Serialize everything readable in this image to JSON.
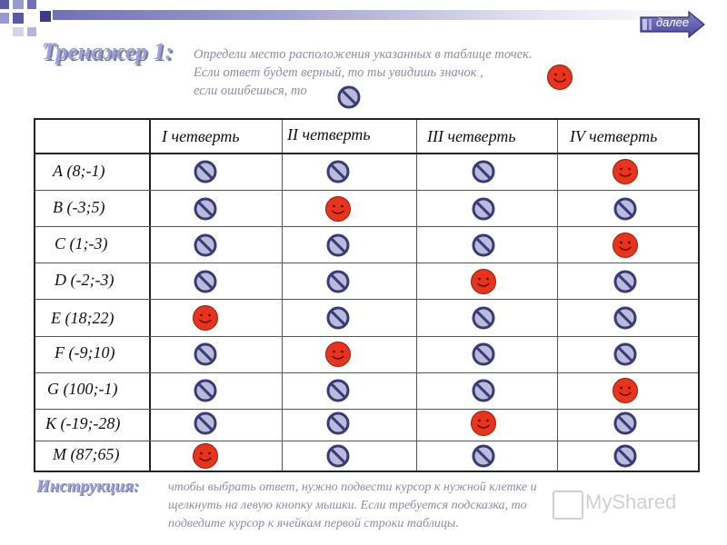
{
  "nav": {
    "next_label": "далее"
  },
  "header": {
    "title": "Тренажер 1:",
    "task_lines": [
      "Определи место расположения указанных в таблице точек.",
      "Если ответ будет верный, то ты увидишь значок ,",
      "если ошибешься, то"
    ]
  },
  "table": {
    "columns": [
      "I четверть",
      "II четверть",
      "III четверть",
      "IV четверть"
    ],
    "rows": [
      {
        "label": "А (8;-1)",
        "cells": [
          "no",
          "no",
          "no",
          "smile"
        ]
      },
      {
        "label": "В (-3;5)",
        "cells": [
          "no",
          "smile",
          "no",
          "no"
        ]
      },
      {
        "label": "С (1;-3)",
        "cells": [
          "no",
          "no",
          "no",
          "smile"
        ]
      },
      {
        "label": "D (-2;-3)",
        "cells": [
          "no",
          "no",
          "smile",
          "no"
        ]
      },
      {
        "label": "Е (18;22)",
        "cells": [
          "smile",
          "no",
          "no",
          "no"
        ]
      },
      {
        "label": "F (-9;10)",
        "cells": [
          "no",
          "smile",
          "no",
          "no"
        ]
      },
      {
        "label": "G (100;-1)",
        "cells": [
          "no",
          "no",
          "no",
          "smile"
        ]
      },
      {
        "label": "К (-19;-28)",
        "cells": [
          "no",
          "no",
          "smile",
          "no"
        ]
      },
      {
        "label": "М (87;65)",
        "cells": [
          "smile",
          "no",
          "no",
          "no"
        ]
      }
    ]
  },
  "instructions": {
    "title": "Инструкция:",
    "lines": [
      "чтобы выбрать ответ, нужно подвести курсор к нужной клетке и",
      "щелкнуть на левую кнопку мышки. Если требуется подсказка, то",
      "подведите курсор к ячейкам первой строки таблицы."
    ]
  },
  "watermark": {
    "text": "MyShared"
  },
  "icons": {
    "correct": "smiley-face-icon",
    "wrong": "prohibited-sign-icon"
  },
  "colors": {
    "title": "#9aa0d8",
    "hint_text": "#8c8ca6",
    "smiley_fill": "#e8341c",
    "prohibit_fill": "#b8bcd8",
    "prohibit_stroke": "#3a3a78"
  }
}
